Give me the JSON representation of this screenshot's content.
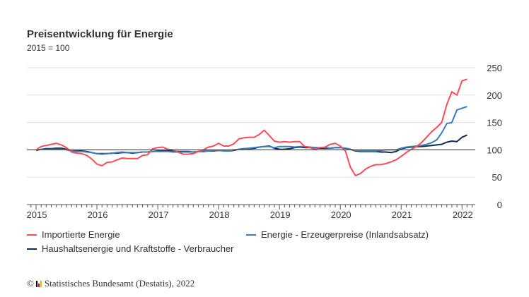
{
  "chart_data": {
    "type": "line",
    "title": "Preisentwicklung für Energie",
    "subtitle": "2015 = 100",
    "x_start": "2015-01",
    "x_end": "2022-02",
    "frequency": "monthly",
    "x_ticks": [
      "2015",
      "2016",
      "2017",
      "2018",
      "2019",
      "2020",
      "2021",
      "2022"
    ],
    "y_ticks": [
      0,
      50,
      100,
      150,
      200,
      250
    ],
    "ylim": [
      0,
      250
    ],
    "reference_line": 100,
    "grid": true,
    "legend_position": "bottom",
    "series": [
      {
        "name": "Importierte Energie",
        "color": "#ff4b57",
        "values": [
          100,
          106,
          108,
          110,
          112,
          109,
          104,
          96,
          94,
          93,
          90,
          83,
          74,
          71,
          77,
          78,
          82,
          85,
          84,
          84,
          84,
          90,
          91,
          102,
          104,
          105,
          101,
          100,
          96,
          92,
          92,
          93,
          97,
          100,
          105,
          107,
          112,
          107,
          107,
          111,
          120,
          122,
          123,
          123,
          128,
          136,
          126,
          116,
          114,
          115,
          114,
          115,
          115,
          106,
          104,
          101,
          104,
          105,
          110,
          112,
          107,
          98,
          68,
          53,
          57,
          65,
          70,
          73,
          73,
          75,
          78,
          82,
          88,
          95,
          101,
          106,
          113,
          123,
          133,
          141,
          150,
          183,
          206,
          200,
          226,
          229
        ]
      },
      {
        "name": "Energie - Erzeugerpreise (Inlandsabsatz)",
        "color": "#3a7bbf",
        "values": [
          100,
          101,
          101,
          101,
          101,
          101,
          100,
          98,
          97,
          97,
          96,
          95,
          93,
          92,
          93,
          94,
          95,
          96,
          95,
          95,
          95,
          96,
          96,
          97,
          97,
          97,
          97,
          96,
          96,
          96,
          96,
          96,
          97,
          98,
          98,
          99,
          99,
          98,
          98,
          100,
          101,
          102,
          103,
          104,
          105,
          106,
          106,
          104,
          106,
          106,
          106,
          105,
          106,
          106,
          105,
          104,
          104,
          104,
          103,
          104,
          104,
          103,
          101,
          99,
          98,
          98,
          98,
          98,
          99,
          100,
          100,
          100,
          103,
          105,
          106,
          107,
          108,
          110,
          113,
          118,
          131,
          148,
          150,
          173,
          176,
          179
        ]
      },
      {
        "name": "Haushaltsenergie und Kraftstoffe - Verbraucher",
        "color": "#0f2d4f",
        "values": [
          99,
          101,
          102,
          102,
          103,
          103,
          101,
          99,
          98,
          98,
          97,
          95,
          93,
          93,
          93,
          94,
          94,
          95,
          95,
          94,
          95,
          96,
          96,
          97,
          98,
          98,
          98,
          98,
          97,
          97,
          97,
          96,
          97,
          97,
          98,
          98,
          99,
          99,
          98,
          99,
          101,
          102,
          102,
          103,
          105,
          106,
          107,
          103,
          101,
          101,
          102,
          104,
          105,
          104,
          104,
          104,
          103,
          103,
          103,
          104,
          104,
          103,
          101,
          98,
          97,
          97,
          97,
          97,
          96,
          96,
          95,
          97,
          102,
          104,
          105,
          106,
          106,
          107,
          108,
          109,
          110,
          114,
          116,
          115,
          123,
          127
        ]
      }
    ]
  },
  "footer": {
    "text": "Statistisches Bundesamt (Destatis), 2022",
    "copyright": "©"
  }
}
